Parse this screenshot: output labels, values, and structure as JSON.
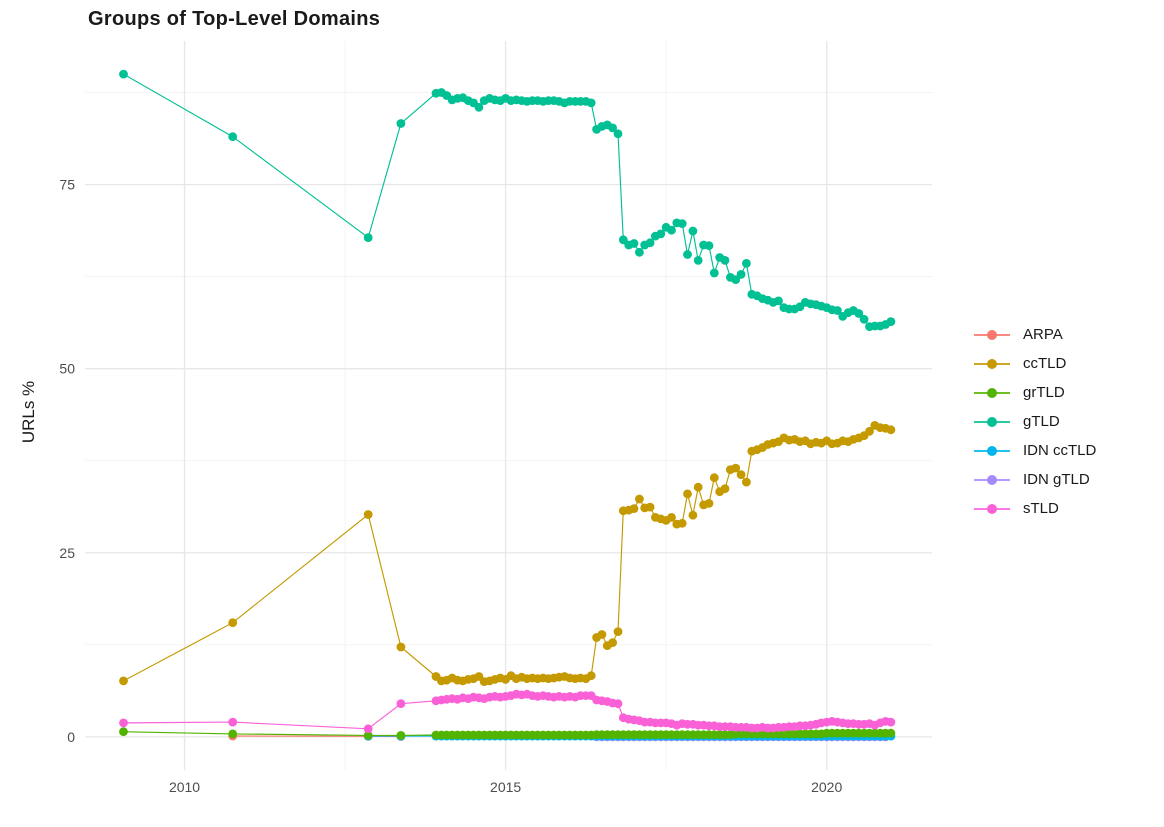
{
  "title": "Groups of Top-Level Domains",
  "palette": {
    "ARPA": "#F8766D",
    "ccTLD": "#C49A00",
    "grTLD": "#53B400",
    "gTLD": "#00C094",
    "IDN ccTLD": "#00B6EB",
    "IDN gTLD": "#A58AFF",
    "sTLD": "#FB61D7"
  },
  "grid": {
    "major_color": "#E7E7E7",
    "minor_color": "#F2F2F2",
    "background": "#FFFFFF",
    "tick_label_color": "#4D4D4D"
  },
  "axes": {
    "x": {
      "ticks": [
        2010,
        2015,
        2020
      ],
      "minor_ticks": [
        2012.5,
        2017.5
      ],
      "range": [
        2008.45,
        2021.64
      ],
      "tick_labels": [
        "2010",
        "2015",
        "2020"
      ]
    },
    "y": {
      "ticks": [
        0,
        25,
        50,
        75
      ],
      "minor_ticks": [
        12.5,
        37.5,
        62.5,
        87.5
      ],
      "range": [
        -4.5,
        94.5
      ],
      "tick_labels": [
        "0",
        "25",
        "50",
        "75"
      ]
    }
  },
  "legend": {
    "position": "right",
    "entries": [
      {
        "label": "ARPA",
        "color": "#F8766D"
      },
      {
        "label": "ccTLD",
        "color": "#C49A00"
      },
      {
        "label": "grTLD",
        "color": "#53B400"
      },
      {
        "label": "gTLD",
        "color": "#00C094"
      },
      {
        "label": "IDN ccTLD",
        "color": "#00B6EB"
      },
      {
        "label": "IDN gTLD",
        "color": "#A58AFF"
      },
      {
        "label": "sTLD",
        "color": "#FB61D7"
      }
    ]
  },
  "chart_data": {
    "type": "line",
    "title": "Groups of Top-Level Domains",
    "xlabel": "",
    "ylabel": "URLs %",
    "x_unit": "year",
    "legend_position": "right",
    "grid": true,
    "draw_order": [
      "ARPA",
      "IDN gTLD",
      "IDN ccTLD",
      "grTLD",
      "sTLD",
      "ccTLD",
      "gTLD"
    ],
    "monthly_grid": {
      "start": 2013.9167,
      "step": 0.08333
    },
    "series": [
      {
        "name": "ARPA",
        "color": "#F8766D",
        "points": [
          [
            2010.75,
            0.12
          ],
          [
            2012.86,
            0.08
          ],
          [
            2013.37,
            0.05
          ]
        ]
      },
      {
        "name": "ccTLD",
        "color": "#C49A00",
        "points": [
          [
            2009.05,
            7.6
          ],
          [
            2010.75,
            15.5
          ],
          [
            2012.86,
            30.2
          ],
          [
            2013.37,
            12.2
          ]
        ],
        "monthly_values": [
          8.2,
          7.6,
          7.7,
          8.0,
          7.7,
          7.6,
          7.8,
          7.9,
          8.2,
          7.5,
          7.6,
          7.8,
          8.0,
          7.8,
          8.3,
          7.9,
          8.1,
          7.9,
          8.0,
          7.9,
          8.0,
          7.9,
          8.0,
          8.1,
          8.2,
          8.0,
          7.9,
          8.0,
          7.9,
          8.3,
          13.5,
          13.9,
          12.4,
          12.8,
          14.3,
          30.7,
          30.8,
          31.0,
          32.3,
          31.1,
          31.2,
          29.8,
          29.6,
          29.4,
          29.8,
          28.9,
          29.0,
          33.0,
          30.1,
          33.9,
          31.5,
          31.7,
          35.2,
          33.3,
          33.7,
          36.3,
          36.5,
          35.6,
          34.6,
          38.8,
          39.0,
          39.3,
          39.7,
          39.9,
          40.1,
          40.6,
          40.3,
          40.4,
          40.1,
          40.2,
          39.8,
          40.0,
          39.9,
          40.2,
          39.8,
          39.9,
          40.2,
          40.1,
          40.4,
          40.6,
          40.9,
          41.5,
          42.3,
          42.0,
          41.9,
          41.7
        ]
      },
      {
        "name": "grTLD",
        "color": "#53B400",
        "points": [
          [
            2009.05,
            0.7
          ],
          [
            2010.75,
            0.4
          ],
          [
            2012.86,
            0.2
          ],
          [
            2013.37,
            0.2
          ]
        ],
        "monthly_values": [
          0.25,
          0.25,
          0.25,
          0.25,
          0.25,
          0.25,
          0.25,
          0.25,
          0.25,
          0.25,
          0.25,
          0.25,
          0.25,
          0.25,
          0.25,
          0.25,
          0.25,
          0.25,
          0.25,
          0.25,
          0.25,
          0.25,
          0.25,
          0.25,
          0.25,
          0.25,
          0.25,
          0.25,
          0.25,
          0.25,
          0.3,
          0.3,
          0.3,
          0.3,
          0.3,
          0.3,
          0.3,
          0.3,
          0.3,
          0.3,
          0.3,
          0.3,
          0.3,
          0.3,
          0.3,
          0.3,
          0.3,
          0.3,
          0.3,
          0.3,
          0.3,
          0.3,
          0.3,
          0.3,
          0.3,
          0.3,
          0.4,
          0.4,
          0.4,
          0.4,
          0.4,
          0.4,
          0.4,
          0.4,
          0.4,
          0.4,
          0.4,
          0.4,
          0.4,
          0.4,
          0.4,
          0.4,
          0.4,
          0.5,
          0.5,
          0.5,
          0.5,
          0.5,
          0.5,
          0.5,
          0.5,
          0.5,
          0.5,
          0.5,
          0.5,
          0.5
        ]
      },
      {
        "name": "gTLD",
        "color": "#00C094",
        "points": [
          [
            2009.05,
            90.0
          ],
          [
            2010.75,
            81.5
          ],
          [
            2012.86,
            67.8
          ],
          [
            2013.37,
            83.3
          ]
        ],
        "monthly_values": [
          87.4,
          87.5,
          87.1,
          86.5,
          86.7,
          86.8,
          86.4,
          86.1,
          85.5,
          86.4,
          86.7,
          86.5,
          86.4,
          86.7,
          86.4,
          86.5,
          86.4,
          86.3,
          86.4,
          86.4,
          86.3,
          86.4,
          86.4,
          86.3,
          86.1,
          86.3,
          86.3,
          86.3,
          86.3,
          86.1,
          82.5,
          82.9,
          83.1,
          82.7,
          81.9,
          67.5,
          66.8,
          67.0,
          65.8,
          66.8,
          67.1,
          68.0,
          68.3,
          69.2,
          68.8,
          69.8,
          69.7,
          65.5,
          68.7,
          64.7,
          66.8,
          66.7,
          63.0,
          65.1,
          64.7,
          62.4,
          62.1,
          62.8,
          64.3,
          60.1,
          59.9,
          59.5,
          59.3,
          59.0,
          59.2,
          58.3,
          58.1,
          58.1,
          58.4,
          59.0,
          58.8,
          58.7,
          58.5,
          58.3,
          58.0,
          57.9,
          57.1,
          57.6,
          57.9,
          57.5,
          56.7,
          55.7,
          55.8,
          55.8,
          56.0,
          56.4
        ]
      },
      {
        "name": "IDN ccTLD",
        "color": "#00B6EB",
        "points": [
          [
            2012.86,
            0.1
          ],
          [
            2013.37,
            0.1
          ]
        ],
        "monthly_values": [
          0.1,
          0.1,
          0.1,
          0.1,
          0.1,
          0.1,
          0.1,
          0.1,
          0.1,
          0.1,
          0.1,
          0.1,
          0.1,
          0.1,
          0.1,
          0.1,
          0.1,
          0.1,
          0.1,
          0.1,
          0.1,
          0.1,
          0.1,
          0.1,
          0.1,
          0.1,
          0.1,
          0.1,
          0.1,
          0.1,
          0.1,
          0.1,
          0.1,
          0.1,
          0.1,
          0.1,
          0.1,
          0.1,
          0.1,
          0.1,
          0.1,
          0.1,
          0.1,
          0.1,
          0.1,
          0.1,
          0.1,
          0.1,
          0.1,
          0.1,
          0.1,
          0.1,
          0.1,
          0.1,
          0.1,
          0.1,
          0.1,
          0.1,
          0.1,
          0.1,
          0.1,
          0.1,
          0.1,
          0.1,
          0.1,
          0.1,
          0.1,
          0.1,
          0.1,
          0.1,
          0.1,
          0.1,
          0.1,
          0.1,
          0.1,
          0.1,
          0.1,
          0.1,
          0.1,
          0.1,
          0.1,
          0.1,
          0.1,
          0.1,
          0.1,
          0.1
        ]
      },
      {
        "name": "IDN gTLD",
        "color": "#A58AFF",
        "points": [],
        "monthly_start_override": 2016.4167,
        "monthly_values": [
          0.0,
          0.0,
          0.0,
          0.0,
          0.0,
          0.0,
          0.0,
          0.0,
          0.0,
          0.0,
          0.0,
          0.0,
          0.0,
          0.0,
          0.0,
          0.0,
          0.0,
          0.0,
          0.0,
          0.0,
          0.0,
          0.0,
          0.0,
          0.0,
          0.0,
          0.0,
          0.0,
          0.0,
          0.0,
          0.0,
          0.0,
          0.0,
          0.0,
          0.0,
          0.0,
          0.0,
          0.0,
          0.0,
          0.0,
          0.0,
          0.0,
          0.0,
          0.0,
          0.0,
          0.0,
          0.0,
          0.0,
          0.0,
          0.0,
          0.0,
          0.0,
          0.0,
          0.0,
          0.0,
          0.0
        ]
      },
      {
        "name": "sTLD",
        "color": "#FB61D7",
        "points": [
          [
            2009.05,
            1.9
          ],
          [
            2010.75,
            2.0
          ],
          [
            2012.86,
            1.1
          ],
          [
            2013.37,
            4.5
          ]
        ],
        "monthly_values": [
          4.9,
          5.0,
          5.1,
          5.2,
          5.1,
          5.3,
          5.2,
          5.4,
          5.3,
          5.2,
          5.4,
          5.5,
          5.4,
          5.5,
          5.6,
          5.8,
          5.7,
          5.8,
          5.6,
          5.5,
          5.6,
          5.5,
          5.4,
          5.5,
          5.4,
          5.5,
          5.4,
          5.6,
          5.6,
          5.6,
          5.0,
          4.9,
          4.8,
          4.6,
          4.5,
          2.6,
          2.4,
          2.3,
          2.2,
          2.0,
          2.0,
          1.9,
          1.9,
          1.9,
          1.8,
          1.6,
          1.8,
          1.7,
          1.7,
          1.6,
          1.6,
          1.5,
          1.5,
          1.4,
          1.4,
          1.4,
          1.3,
          1.3,
          1.3,
          1.2,
          1.2,
          1.3,
          1.2,
          1.2,
          1.3,
          1.3,
          1.4,
          1.4,
          1.5,
          1.5,
          1.6,
          1.7,
          1.9,
          2.0,
          2.1,
          2.0,
          1.9,
          1.8,
          1.8,
          1.7,
          1.7,
          1.8,
          1.6,
          1.9,
          2.1,
          2.0
        ]
      }
    ]
  }
}
